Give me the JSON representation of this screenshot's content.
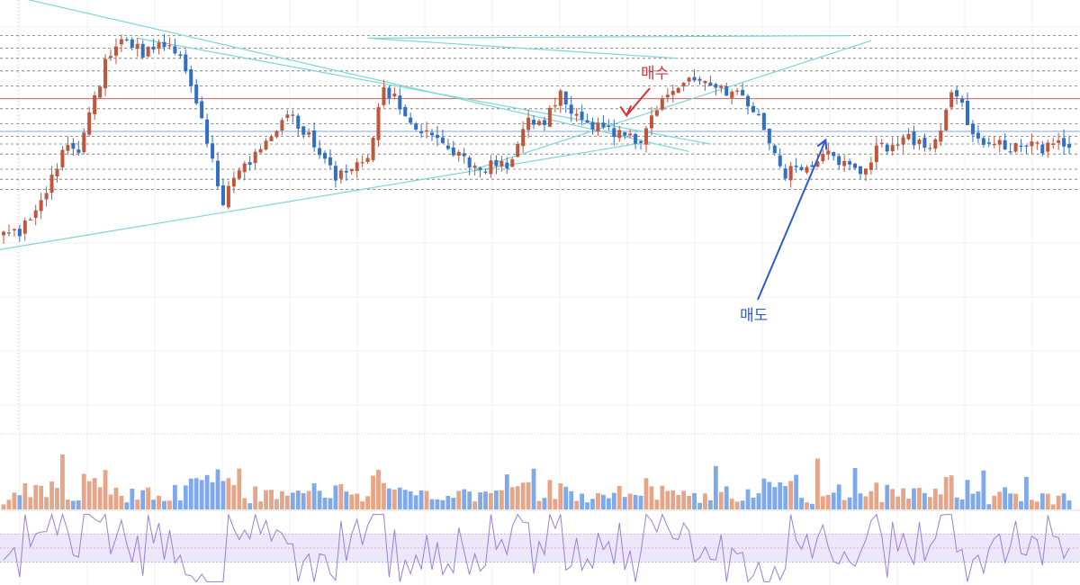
{
  "colors": {
    "up": "#c0573c",
    "down": "#2f6fc4",
    "vol_up": "#e8a486",
    "vol_down": "#7fa9e8",
    "trendline": "#7fd6d6",
    "hline": "#444444",
    "red_line": "#e05a5a",
    "blue_line": "#7ea7e8",
    "buy": "#d9303a",
    "sell": "#2a5bd7",
    "osc_line": "#9b7fd4",
    "osc_band": "#ede7fb",
    "grid": "#f0f0f0"
  },
  "annotations": {
    "buy_label": "매수",
    "sell_label": "매도"
  },
  "chart_data": {
    "type": "candlestick",
    "title": "",
    "xlabel": "",
    "ylabel": "",
    "ylim": [
      0,
      100
    ],
    "grid": true,
    "candle_count": 200,
    "close_path": [
      [
        0,
        15
      ],
      [
        3,
        14
      ],
      [
        8,
        30
      ],
      [
        12,
        52
      ],
      [
        14,
        46
      ],
      [
        19,
        82
      ],
      [
        23,
        92
      ],
      [
        26,
        86
      ],
      [
        30,
        90
      ],
      [
        33,
        84
      ],
      [
        36,
        68
      ],
      [
        39,
        42
      ],
      [
        41,
        28
      ],
      [
        43,
        38
      ],
      [
        46,
        44
      ],
      [
        50,
        52
      ],
      [
        53,
        62
      ],
      [
        56,
        56
      ],
      [
        59,
        46
      ],
      [
        62,
        36
      ],
      [
        65,
        42
      ],
      [
        68,
        44
      ],
      [
        71,
        72
      ],
      [
        74,
        66
      ],
      [
        77,
        58
      ],
      [
        80,
        52
      ],
      [
        83,
        47
      ],
      [
        86,
        44
      ],
      [
        89,
        40
      ],
      [
        92,
        43
      ],
      [
        95,
        42
      ],
      [
        98,
        60
      ],
      [
        101,
        58
      ],
      [
        104,
        70
      ],
      [
        107,
        61
      ],
      [
        110,
        57
      ],
      [
        113,
        55
      ],
      [
        116,
        54
      ],
      [
        119,
        51
      ],
      [
        122,
        63
      ],
      [
        125,
        72
      ],
      [
        128,
        76
      ],
      [
        131,
        74
      ],
      [
        134,
        71
      ],
      [
        137,
        70
      ],
      [
        140,
        65
      ],
      [
        142,
        55
      ],
      [
        144,
        44
      ],
      [
        146,
        38
      ],
      [
        148,
        42
      ],
      [
        150,
        40
      ],
      [
        152,
        44
      ],
      [
        155,
        46
      ],
      [
        158,
        40
      ],
      [
        161,
        39
      ],
      [
        163,
        47
      ],
      [
        166,
        50
      ],
      [
        169,
        52
      ],
      [
        172,
        48
      ],
      [
        175,
        56
      ],
      [
        177,
        72
      ],
      [
        179,
        64
      ],
      [
        181,
        55
      ],
      [
        183,
        50
      ],
      [
        185,
        52
      ],
      [
        188,
        49
      ],
      [
        191,
        49
      ],
      [
        194,
        48
      ],
      [
        197,
        49
      ],
      [
        199,
        50
      ]
    ],
    "horizontal_levels": [
      93,
      88,
      84,
      79,
      73,
      64,
      58,
      53,
      50,
      46,
      40,
      36,
      32
    ],
    "red_level": 68,
    "blue_level": 55,
    "trendlines": [
      {
        "p1": [
          -1,
          110
        ],
        "p2": [
          128,
          47
        ]
      },
      {
        "p1": [
          -1,
          8
        ],
        "p2": [
          118,
          50
        ]
      },
      {
        "p1": [
          25,
          92
        ],
        "p2": [
          132,
          50
        ]
      },
      {
        "p1": [
          68,
          92
        ],
        "p2": [
          126,
          84
        ]
      },
      {
        "p1": [
          68,
          92
        ],
        "p2": [
          158,
          93
        ]
      },
      {
        "p1": [
          88,
          40
        ],
        "p2": [
          162,
          91
        ]
      }
    ],
    "buy_signal": {
      "index": 116,
      "value": 62
    },
    "sell_signal": {
      "index": 153,
      "value": 53
    },
    "volume": {
      "ylim": [
        0,
        60
      ]
    },
    "oscillator": {
      "ylim": [
        0,
        100
      ],
      "band": [
        30,
        70
      ],
      "mid": 50
    }
  }
}
